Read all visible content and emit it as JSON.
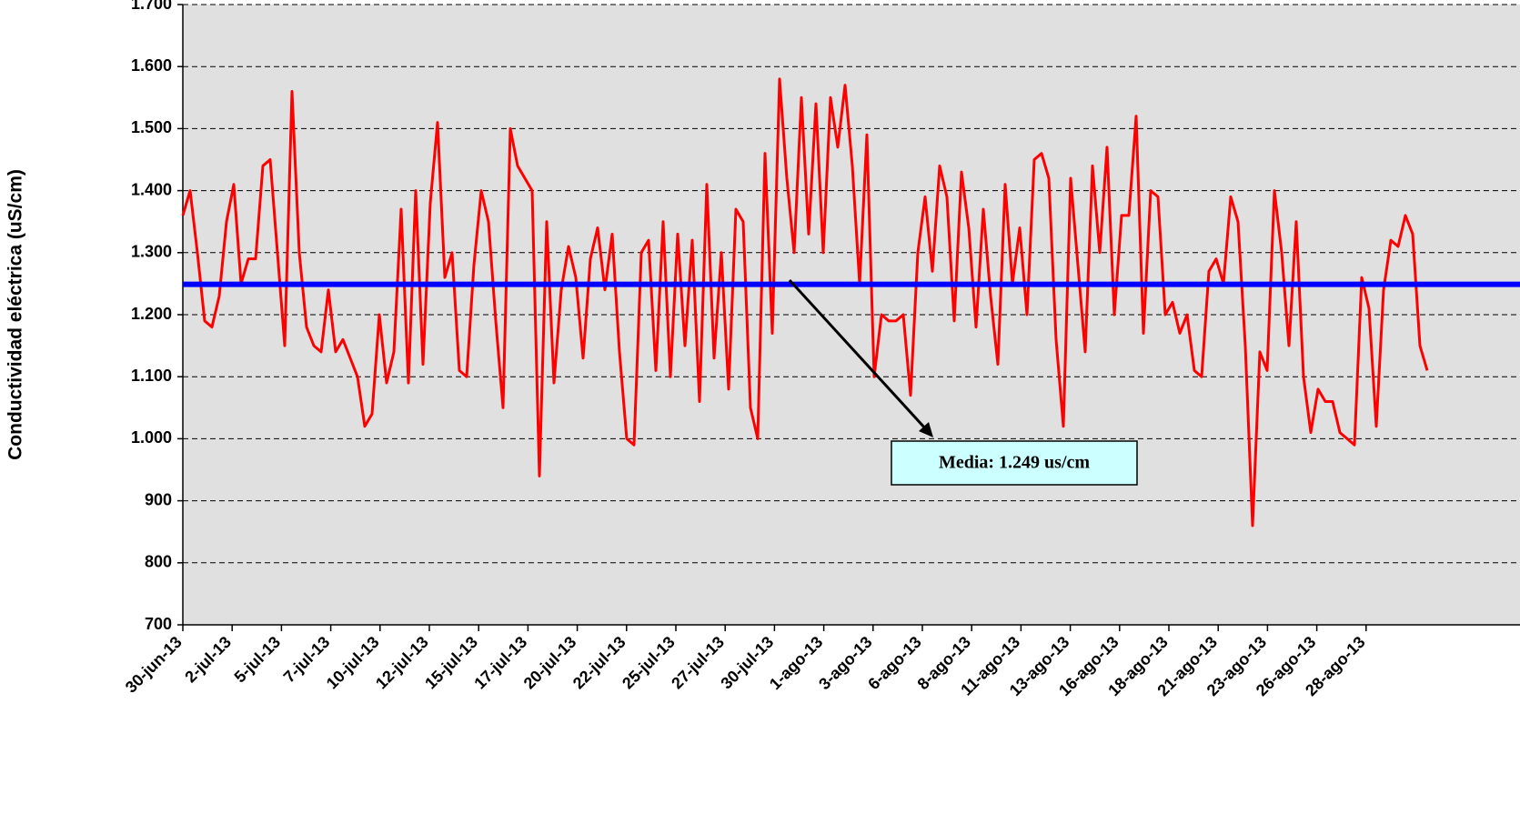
{
  "chart_data": {
    "type": "line",
    "y_label": "Conductividad eléctrica (uS/cm)",
    "ylim": [
      700,
      1700
    ],
    "yticks": [
      {
        "value": 700,
        "label": "700"
      },
      {
        "value": 800,
        "label": "800"
      },
      {
        "value": 900,
        "label": "900"
      },
      {
        "value": 1000,
        "label": "1.000"
      },
      {
        "value": 1100,
        "label": "1.100"
      },
      {
        "value": 1200,
        "label": "1.200"
      },
      {
        "value": 1300,
        "label": "1.300"
      },
      {
        "value": 1400,
        "label": "1.400"
      },
      {
        "value": 1500,
        "label": "1.500"
      },
      {
        "value": 1600,
        "label": "1.600"
      },
      {
        "value": 1700,
        "label": "1.700"
      }
    ],
    "grid": true,
    "x_labels": [
      "30-jun-13",
      "2-jul-13",
      "5-jul-13",
      "7-jul-13",
      "10-jul-13",
      "12-jul-13",
      "15-jul-13",
      "17-jul-13",
      "20-jul-13",
      "22-jul-13",
      "25-jul-13",
      "27-jul-13",
      "30-jul-13",
      "1-ago-13",
      "3-ago-13",
      "6-ago-13",
      "8-ago-13",
      "11-ago-13",
      "13-ago-13",
      "16-ago-13",
      "18-ago-13",
      "21-ago-13",
      "23-ago-13",
      "26-ago-13",
      "28-ago-13"
    ],
    "series": [
      {
        "color": "#ff0000",
        "values": [
          1360,
          1400,
          1300,
          1190,
          1180,
          1230,
          1350,
          1410,
          1250,
          1290,
          1290,
          1440,
          1450,
          1300,
          1150,
          1560,
          1300,
          1180,
          1150,
          1140,
          1240,
          1140,
          1160,
          1130,
          1100,
          1020,
          1040,
          1200,
          1090,
          1140,
          1370,
          1090,
          1400,
          1120,
          1380,
          1510,
          1260,
          1300,
          1110,
          1100,
          1280,
          1400,
          1350,
          1190,
          1050,
          1500,
          1440,
          1420,
          1400,
          940,
          1350,
          1090,
          1240,
          1310,
          1260,
          1130,
          1290,
          1340,
          1240,
          1330,
          1140,
          1000,
          990,
          1300,
          1320,
          1110,
          1350,
          1100,
          1330,
          1150,
          1320,
          1060,
          1410,
          1130,
          1300,
          1080,
          1370,
          1350,
          1050,
          1000,
          1460,
          1170,
          1580,
          1420,
          1300,
          1550,
          1330,
          1540,
          1300,
          1550,
          1470,
          1570,
          1440,
          1250,
          1490,
          1100,
          1200,
          1190,
          1190,
          1200,
          1070,
          1300,
          1390,
          1270,
          1440,
          1390,
          1190,
          1430,
          1340,
          1180,
          1370,
          1230,
          1120,
          1410,
          1250,
          1340,
          1200,
          1450,
          1460,
          1420,
          1160,
          1020,
          1420,
          1280,
          1140,
          1440,
          1300,
          1470,
          1200,
          1360,
          1360,
          1520,
          1170,
          1400,
          1390,
          1200,
          1220,
          1170,
          1200,
          1110,
          1100,
          1270,
          1290,
          1250,
          1390,
          1350,
          1150,
          860,
          1140,
          1110,
          1400,
          1300,
          1150,
          1350,
          1100,
          1010,
          1080,
          1060,
          1060,
          1010,
          1000,
          990,
          1260,
          1210,
          1020,
          1240,
          1320,
          1310,
          1360,
          1330,
          1150,
          1110
        ]
      }
    ],
    "mean_line": {
      "value": 1249,
      "color": "#0000ff",
      "label": "Media: 1.249 us/cm"
    }
  }
}
